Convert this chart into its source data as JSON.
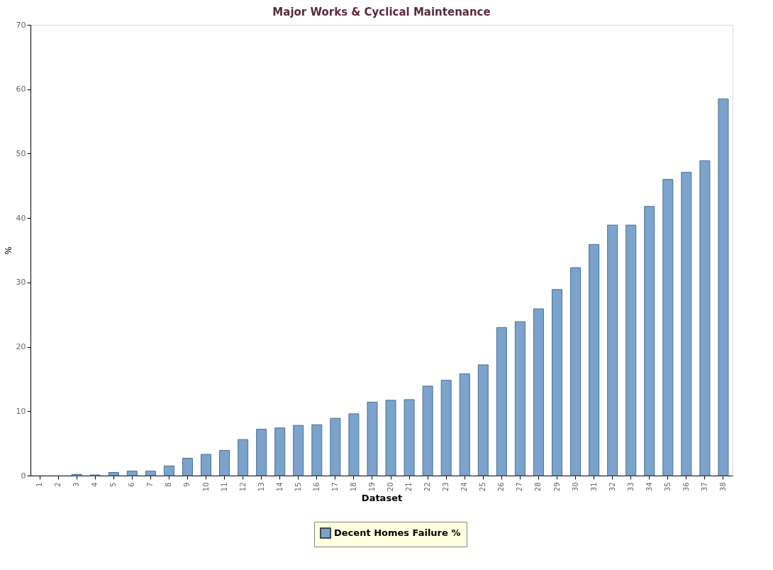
{
  "chart_data": {
    "type": "bar",
    "title": "Major Works & Cyclical Maintenance",
    "xlabel": "Dataset",
    "ylabel": "%",
    "categories": [
      "1",
      "2",
      "3",
      "4",
      "5",
      "6",
      "7",
      "8",
      "9",
      "10",
      "11",
      "12",
      "13",
      "14",
      "15",
      "16",
      "17",
      "18",
      "19",
      "20",
      "21",
      "22",
      "23",
      "24",
      "25",
      "26",
      "27",
      "28",
      "29",
      "30",
      "31",
      "32",
      "33",
      "34",
      "35",
      "36",
      "37",
      "38"
    ],
    "series": [
      {
        "name": "Decent Homes Failure %",
        "color": "#7ba3cc",
        "values": [
          0,
          0,
          0.2,
          0.1,
          0.5,
          0.7,
          0.7,
          1.5,
          2.7,
          3.3,
          3.9,
          5.6,
          7.2,
          7.4,
          7.8,
          7.9,
          8.9,
          9.6,
          11.4,
          11.7,
          11.8,
          13.9,
          14.8,
          15.8,
          17.2,
          23,
          23.9,
          25.9,
          28.9,
          32.3,
          35.9,
          38.9,
          38.9,
          41.8,
          46,
          47.1,
          48.9,
          58.5
        ]
      }
    ],
    "ylim": [
      0,
      70
    ],
    "yticks": [
      0,
      10,
      20,
      30,
      40,
      50,
      60,
      70
    ],
    "grid": false,
    "legend": "bottom"
  }
}
